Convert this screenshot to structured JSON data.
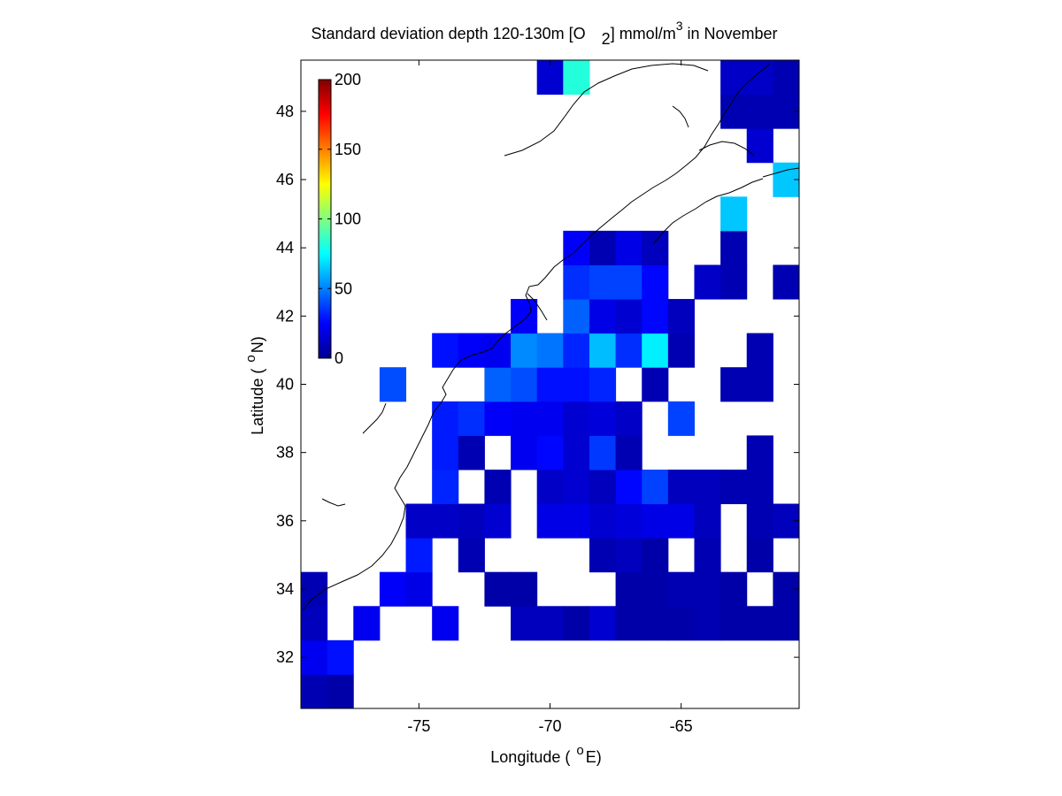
{
  "chart_data": {
    "type": "heatmap",
    "title": {
      "main": "Standard deviation depth 120-130m [O",
      "sub": "2",
      "unit": "] mmol/m",
      "sup": "3",
      "tail": " in November"
    },
    "xlabel": {
      "text": "Longitude ( ",
      "sup": "o",
      "tail": "E)"
    },
    "ylabel": {
      "text": "Latitude ( ",
      "sup": "o",
      "tail": "N)"
    },
    "xlim": [
      -79.5,
      -60.5
    ],
    "ylim": [
      30.5,
      49.5
    ],
    "xticks": [
      {
        "value": -75,
        "label": "-75"
      },
      {
        "value": -70,
        "label": "-70"
      },
      {
        "value": -65,
        "label": "-65"
      }
    ],
    "yticks": [
      {
        "value": 32,
        "label": "32"
      },
      {
        "value": 34,
        "label": "34"
      },
      {
        "value": 36,
        "label": "36"
      },
      {
        "value": 38,
        "label": "38"
      },
      {
        "value": 40,
        "label": "40"
      },
      {
        "value": 42,
        "label": "42"
      },
      {
        "value": 44,
        "label": "44"
      },
      {
        "value": 46,
        "label": "46"
      },
      {
        "value": 48,
        "label": "48"
      }
    ],
    "colorbar": {
      "colormap": "jet",
      "range": [
        0,
        200
      ],
      "ticks": [
        {
          "value": 0,
          "label": "0"
        },
        {
          "value": 50,
          "label": "50"
        },
        {
          "value": 100,
          "label": "100"
        },
        {
          "value": 150,
          "label": "150"
        },
        {
          "value": 200,
          "label": "200"
        }
      ]
    },
    "cell_size_deg": 1,
    "cells": [
      [
        -79,
        31,
        10
      ],
      [
        -78,
        31,
        8
      ],
      [
        -79,
        32,
        22
      ],
      [
        -78,
        32,
        28
      ],
      [
        -79,
        33,
        12
      ],
      [
        -77,
        33,
        22
      ],
      [
        -74,
        33,
        22
      ],
      [
        -71,
        33,
        12
      ],
      [
        -70,
        33,
        12
      ],
      [
        -69,
        33,
        8
      ],
      [
        -68,
        33,
        16
      ],
      [
        -67,
        33,
        8
      ],
      [
        -66,
        33,
        8
      ],
      [
        -65,
        33,
        8
      ],
      [
        -64,
        33,
        10
      ],
      [
        -63,
        33,
        8
      ],
      [
        -62,
        33,
        8
      ],
      [
        -61,
        33,
        8
      ],
      [
        -60,
        33,
        8
      ],
      [
        -79,
        34,
        10
      ],
      [
        -76,
        34,
        24
      ],
      [
        -75,
        34,
        20
      ],
      [
        -72,
        34,
        8
      ],
      [
        -71,
        34,
        8
      ],
      [
        -67,
        34,
        8
      ],
      [
        -66,
        34,
        8
      ],
      [
        -65,
        34,
        10
      ],
      [
        -64,
        34,
        10
      ],
      [
        -63,
        34,
        8
      ],
      [
        -61,
        34,
        8
      ],
      [
        -60,
        34,
        24
      ],
      [
        -75,
        35,
        30
      ],
      [
        -73,
        35,
        10
      ],
      [
        -68,
        35,
        10
      ],
      [
        -67,
        35,
        12
      ],
      [
        -66,
        35,
        8
      ],
      [
        -64,
        35,
        10
      ],
      [
        -62,
        35,
        8
      ],
      [
        -60,
        35,
        12
      ],
      [
        -75,
        36,
        14
      ],
      [
        -74,
        36,
        14
      ],
      [
        -73,
        36,
        12
      ],
      [
        -72,
        36,
        16
      ],
      [
        -70,
        36,
        20
      ],
      [
        -69,
        36,
        20
      ],
      [
        -68,
        36,
        16
      ],
      [
        -67,
        36,
        18
      ],
      [
        -66,
        36,
        20
      ],
      [
        -65,
        36,
        20
      ],
      [
        -64,
        36,
        12
      ],
      [
        -62,
        36,
        10
      ],
      [
        -61,
        36,
        12
      ],
      [
        -60,
        36,
        14
      ],
      [
        -74,
        37,
        32
      ],
      [
        -72,
        37,
        10
      ],
      [
        -70,
        37,
        14
      ],
      [
        -69,
        37,
        16
      ],
      [
        -68,
        37,
        12
      ],
      [
        -67,
        37,
        26
      ],
      [
        -66,
        37,
        38
      ],
      [
        -65,
        37,
        12
      ],
      [
        -64,
        37,
        12
      ],
      [
        -63,
        37,
        10
      ],
      [
        -62,
        37,
        10
      ],
      [
        -60,
        37,
        10
      ],
      [
        -74,
        38,
        30
      ],
      [
        -73,
        38,
        10
      ],
      [
        -71,
        38,
        22
      ],
      [
        -70,
        38,
        26
      ],
      [
        -69,
        38,
        16
      ],
      [
        -68,
        38,
        36
      ],
      [
        -67,
        38,
        10
      ],
      [
        -62,
        38,
        10
      ],
      [
        -60,
        38,
        10
      ],
      [
        -74,
        39,
        30
      ],
      [
        -73,
        39,
        34
      ],
      [
        -72,
        39,
        24
      ],
      [
        -71,
        39,
        22
      ],
      [
        -70,
        39,
        22
      ],
      [
        -69,
        39,
        16
      ],
      [
        -68,
        39,
        18
      ],
      [
        -67,
        39,
        14
      ],
      [
        -65,
        39,
        38
      ],
      [
        -60,
        39,
        10
      ],
      [
        -76,
        40,
        40
      ],
      [
        -72,
        40,
        44
      ],
      [
        -71,
        40,
        40
      ],
      [
        -70,
        40,
        28
      ],
      [
        -69,
        40,
        28
      ],
      [
        -68,
        40,
        32
      ],
      [
        -66,
        40,
        10
      ],
      [
        -63,
        40,
        10
      ],
      [
        -62,
        40,
        10
      ],
      [
        -60,
        40,
        10
      ],
      [
        -74,
        41,
        28
      ],
      [
        -73,
        41,
        24
      ],
      [
        -72,
        41,
        22
      ],
      [
        -71,
        41,
        52
      ],
      [
        -70,
        41,
        48
      ],
      [
        -69,
        41,
        32
      ],
      [
        -68,
        41,
        62
      ],
      [
        -67,
        41,
        34
      ],
      [
        -66,
        41,
        72
      ],
      [
        -65,
        41,
        10
      ],
      [
        -62,
        41,
        10
      ],
      [
        -60,
        41,
        10
      ],
      [
        -71,
        42,
        24
      ],
      [
        -69,
        42,
        44
      ],
      [
        -68,
        42,
        20
      ],
      [
        -67,
        42,
        16
      ],
      [
        -66,
        42,
        26
      ],
      [
        -65,
        42,
        12
      ],
      [
        -60,
        42,
        12
      ],
      [
        -69,
        43,
        34
      ],
      [
        -68,
        43,
        38
      ],
      [
        -67,
        43,
        38
      ],
      [
        -66,
        43,
        26
      ],
      [
        -64,
        43,
        14
      ],
      [
        -63,
        43,
        10
      ],
      [
        -61,
        43,
        10
      ],
      [
        -60,
        43,
        50
      ],
      [
        -69,
        44,
        24
      ],
      [
        -68,
        44,
        10
      ],
      [
        -67,
        44,
        20
      ],
      [
        -66,
        44,
        12
      ],
      [
        -63,
        44,
        10
      ],
      [
        -60,
        44,
        50
      ],
      [
        -63,
        45,
        64
      ],
      [
        -61,
        46,
        64
      ],
      [
        -60,
        46,
        64
      ],
      [
        -62,
        47,
        16
      ],
      [
        -63,
        48,
        10
      ],
      [
        -62,
        48,
        10
      ],
      [
        -61,
        48,
        10
      ],
      [
        -60,
        48,
        22
      ],
      [
        -70,
        49,
        16
      ],
      [
        -69,
        49,
        82
      ],
      [
        -63,
        49,
        14
      ],
      [
        -62,
        49,
        14
      ],
      [
        -61,
        49,
        10
      ],
      [
        -60,
        49,
        10
      ],
      [
        -66,
        50,
        10
      ],
      [
        -65,
        50,
        10
      ],
      [
        -64,
        50,
        40
      ],
      [
        -63,
        50,
        10
      ],
      [
        -61,
        50,
        10
      ],
      [
        -60,
        50,
        10
      ]
    ]
  }
}
